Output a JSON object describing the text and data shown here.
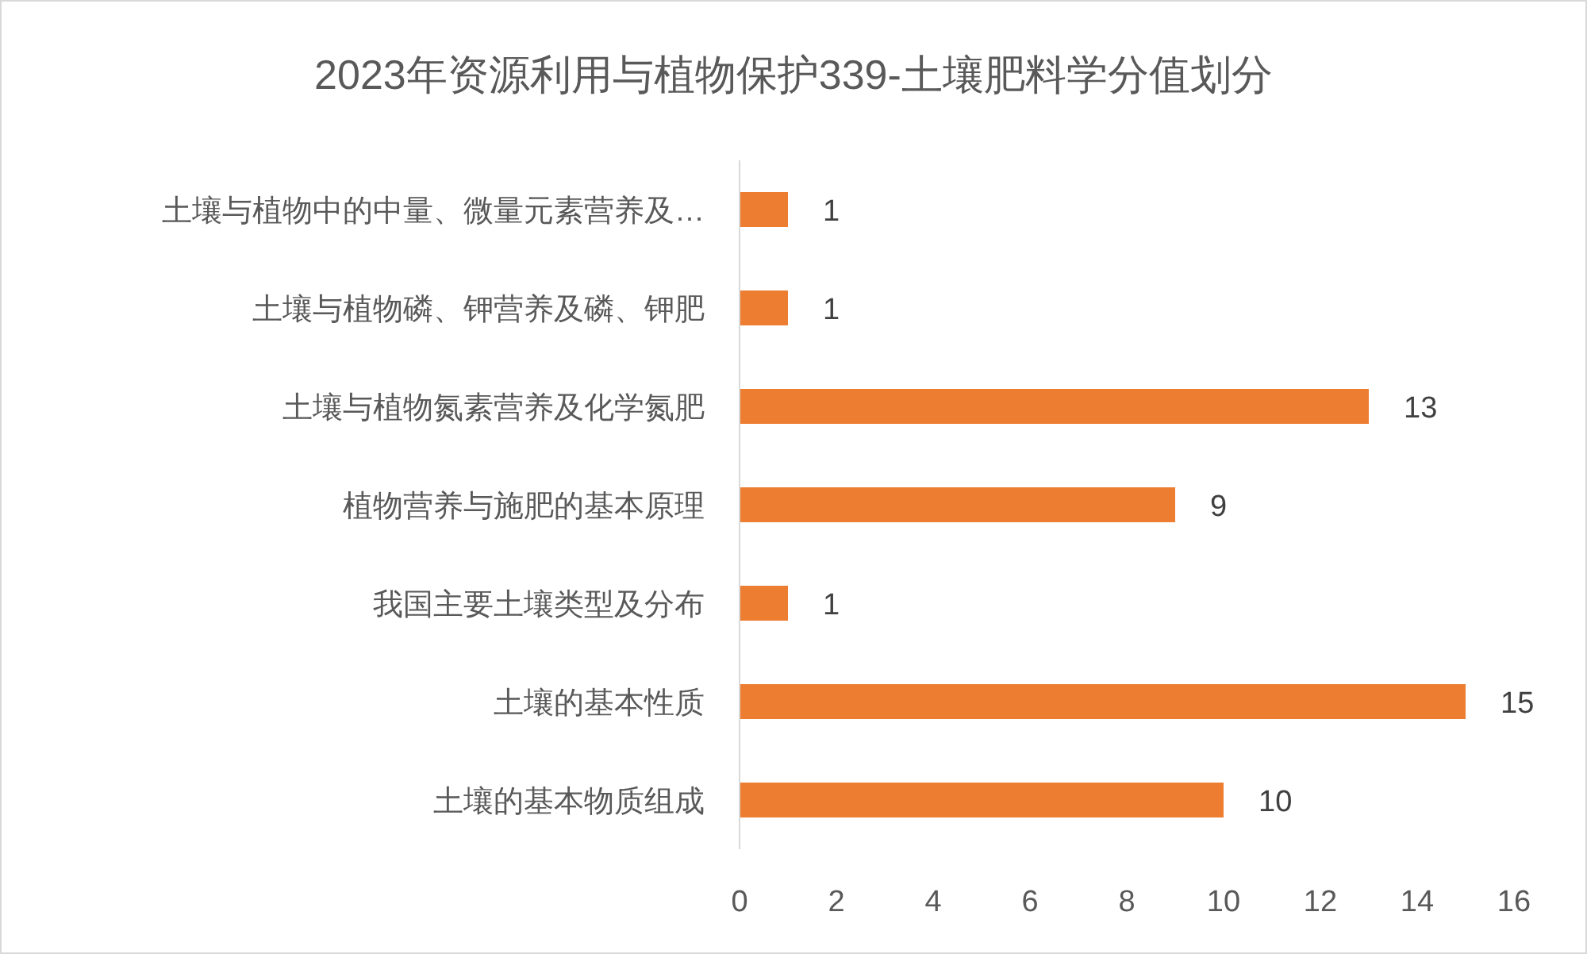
{
  "chart_data": {
    "type": "bar",
    "orientation": "horizontal",
    "title": "2023年资源利用与植物保护339-土壤肥料学分值划分",
    "categories": [
      "土壤与植物中的中量、微量元素营养及…",
      "土壤与植物磷、钾营养及磷、钾肥",
      "土壤与植物氮素营养及化学氮肥",
      "植物营养与施肥的基本原理",
      "我国主要土壤类型及分布",
      "土壤的基本性质",
      "土壤的基本物质组成"
    ],
    "values": [
      1,
      1,
      13,
      9,
      1,
      15,
      10
    ],
    "color": "#ed7d31",
    "xlim": [
      0,
      16
    ],
    "xticks": [
      0,
      2,
      4,
      6,
      8,
      10,
      12,
      14,
      16
    ],
    "data_labels": true
  }
}
